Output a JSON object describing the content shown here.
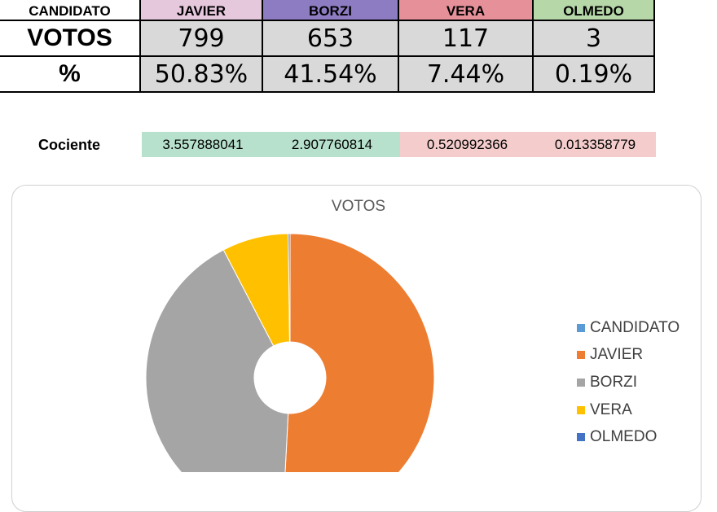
{
  "table": {
    "header": [
      "CANDIDATO",
      "JAVIER",
      "BORZI",
      "VERA",
      "OLMEDO"
    ],
    "header_colors": [
      "#ffffff",
      "#e6c8dd",
      "#8e7cc3",
      "#e6909a",
      "#b6d7a8"
    ],
    "votes_label": "VOTOS",
    "votes": [
      "799",
      "653",
      "117",
      "3"
    ],
    "pct_label": "%",
    "pct": [
      "50.83%",
      "41.54%",
      "7.44%",
      "0.19%"
    ]
  },
  "cociente": {
    "label": "Cociente",
    "values": [
      "3.557888041",
      "2.907760814",
      "0.520992366",
      "0.013358779"
    ],
    "colors": [
      "#b7e1cd",
      "#b7e1cd",
      "#f4cccc",
      "#f4cccc"
    ]
  },
  "chart_data": {
    "type": "pie",
    "title": "VOTOS",
    "categories": [
      "CANDIDATO",
      "JAVIER",
      "BORZI",
      "VERA",
      "OLMEDO"
    ],
    "values": [
      0,
      799,
      653,
      117,
      3
    ],
    "colors": [
      "#5b9bd5",
      "#ed7d31",
      "#a5a5a5",
      "#ffc000",
      "#4472c4"
    ],
    "legend": "right",
    "doughnut": true
  }
}
